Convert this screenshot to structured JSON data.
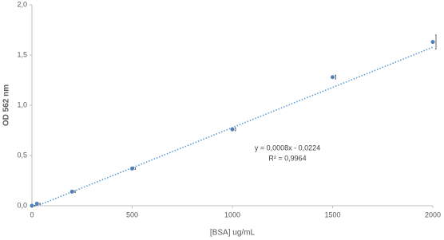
{
  "chart_data": {
    "type": "scatter",
    "x_label": "[BSA] ug/mL",
    "y_label": "OD 562 nm",
    "x": [
      0,
      25,
      200,
      500,
      1000,
      1500,
      2000
    ],
    "series": [
      {
        "name": "OD 562 nm",
        "color": "#4f81bd",
        "values": [
          0.0,
          0.02,
          0.14,
          0.37,
          0.76,
          1.28,
          1.63
        ],
        "errors": [
          0.005,
          0.005,
          0.01,
          0.01,
          0.015,
          0.02,
          0.07
        ]
      }
    ],
    "trendline": {
      "slope": 0.0008,
      "intercept": -0.0224,
      "r2": 0.9964,
      "color": "#5b9bd5",
      "label": "y = 0,0008x - 0,0224",
      "r2_label": "R² = 0,9964"
    },
    "xlim": [
      0,
      2000
    ],
    "xticks": [
      0,
      500,
      1000,
      1500,
      2000
    ],
    "ylim": [
      0,
      2.0
    ],
    "yticks": [
      {
        "value": 0,
        "label": "0,0"
      },
      {
        "value": 0.5,
        "label": "0,5"
      },
      {
        "value": 1.0,
        "label": "1,0"
      },
      {
        "value": 1.5,
        "label": "1,5"
      },
      {
        "value": 2.0,
        "label": "2,0"
      }
    ],
    "grid": false
  }
}
